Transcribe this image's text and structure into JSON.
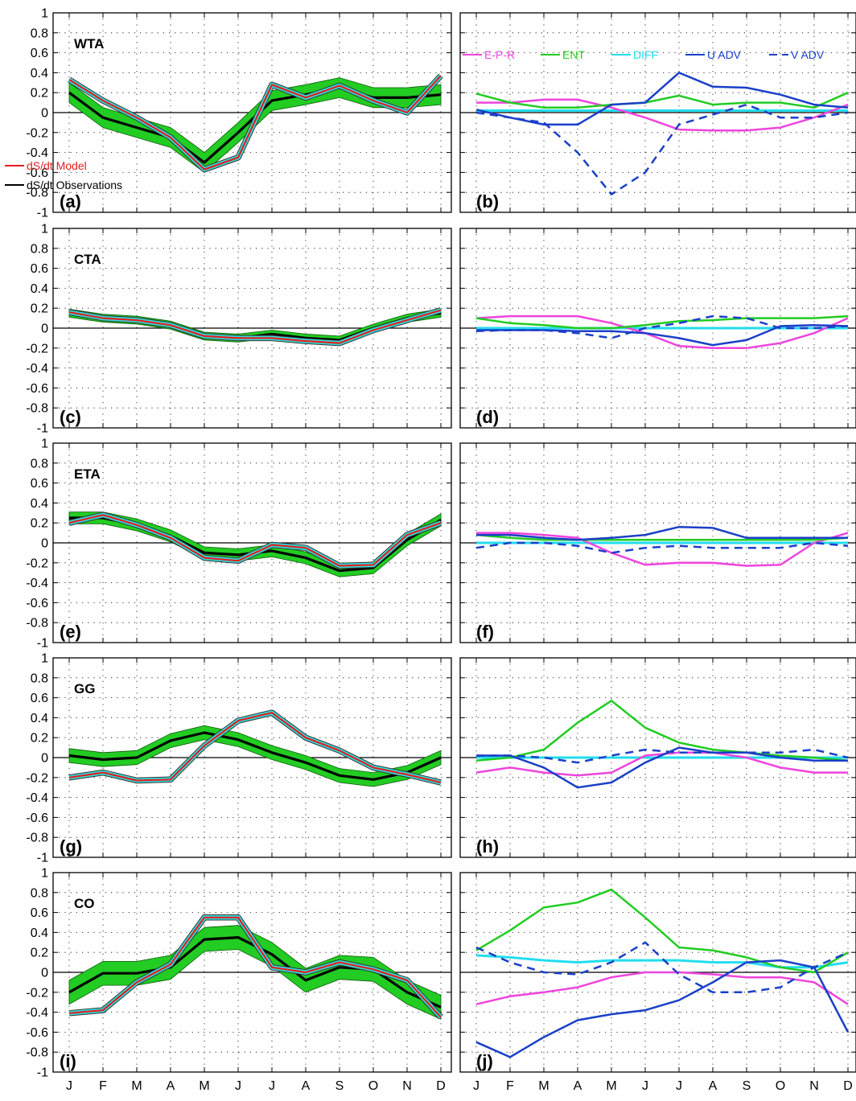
{
  "chart_data": {
    "type": "line",
    "months": [
      "J",
      "F",
      "M",
      "A",
      "M",
      "J",
      "J",
      "A",
      "S",
      "O",
      "N",
      "D"
    ],
    "y_ticks": [
      "1",
      "0.8",
      "0.6",
      "0.4",
      "0.2",
      "0",
      "-0.2",
      "-0.4",
      "-0.6",
      "-0.8",
      "-1"
    ],
    "ylim": [
      -1,
      1
    ],
    "legend_left": {
      "model": "dS/dt Model",
      "obs": "dS/dt Observations"
    },
    "legend_right": [
      "E-P-R",
      "ENT",
      "DIFF",
      "U ADV",
      "V ADV"
    ],
    "colors": {
      "obs": "#000000",
      "band": "#22cc22",
      "model": "#e02020",
      "model_band": "#33dddd",
      "epr": "#ee44dd",
      "ent": "#22cc22",
      "diff": "#22ddee",
      "uadv": "#1a3fc8",
      "vadv": "#1a3fc8"
    },
    "rows": [
      {
        "region": "WTA",
        "left_label": "(a)",
        "right_label": "(b)",
        "obs": [
          0.2,
          -0.05,
          -0.15,
          -0.25,
          -0.5,
          -0.2,
          0.12,
          0.18,
          0.25,
          0.15,
          0.15,
          0.18
        ],
        "obs_spread": 0.1,
        "model": [
          0.33,
          0.12,
          -0.05,
          -0.25,
          -0.57,
          -0.45,
          0.28,
          0.15,
          0.27,
          0.12,
          0.0,
          0.37
        ],
        "epr": [
          0.1,
          0.1,
          0.13,
          0.13,
          0.05,
          -0.05,
          -0.17,
          -0.18,
          -0.18,
          -0.15,
          -0.05,
          0.08
        ],
        "ent": [
          0.19,
          0.1,
          0.05,
          0.05,
          0.08,
          0.1,
          0.17,
          0.08,
          0.1,
          0.1,
          0.05,
          0.2
        ],
        "diff": [
          0.02,
          0.02,
          0.02,
          0.02,
          0.02,
          0.02,
          0.02,
          0.02,
          0.02,
          0.02,
          0.02,
          0.02
        ],
        "uadv": [
          0.03,
          -0.05,
          -0.12,
          -0.12,
          0.08,
          0.1,
          0.4,
          0.26,
          0.25,
          0.18,
          0.08,
          0.05
        ],
        "vadv": [
          0.0,
          -0.05,
          -0.1,
          -0.4,
          -0.82,
          -0.6,
          -0.12,
          -0.02,
          0.08,
          -0.05,
          -0.05,
          0.0
        ]
      },
      {
        "region": "CTA",
        "left_label": "(c)",
        "right_label": "(d)",
        "obs": [
          0.15,
          0.1,
          0.08,
          0.03,
          -0.08,
          -0.1,
          -0.06,
          -0.1,
          -0.12,
          0.0,
          0.1,
          0.15
        ],
        "obs_spread": 0.04,
        "model": [
          0.16,
          0.1,
          0.08,
          0.03,
          -0.08,
          -0.1,
          -0.1,
          -0.13,
          -0.15,
          -0.02,
          0.08,
          0.18
        ],
        "epr": [
          0.1,
          0.12,
          0.12,
          0.12,
          0.05,
          -0.05,
          -0.18,
          -0.2,
          -0.2,
          -0.15,
          -0.05,
          0.1
        ],
        "ent": [
          0.1,
          0.05,
          0.03,
          0.0,
          0.0,
          0.03,
          0.07,
          0.08,
          0.1,
          0.1,
          0.1,
          0.12
        ],
        "diff": [
          0.0,
          0.0,
          0.0,
          0.0,
          0.0,
          0.0,
          0.0,
          0.0,
          0.0,
          0.0,
          0.0,
          0.0
        ],
        "uadv": [
          -0.02,
          -0.02,
          -0.02,
          -0.03,
          -0.03,
          -0.05,
          -0.1,
          -0.17,
          -0.12,
          0.02,
          0.03,
          0.02
        ],
        "vadv": [
          -0.03,
          -0.02,
          -0.02,
          -0.05,
          -0.1,
          0.0,
          0.05,
          0.12,
          0.1,
          0.0,
          0.0,
          0.02
        ]
      },
      {
        "region": "ETA",
        "left_label": "(e)",
        "right_label": "(f)",
        "obs": [
          0.25,
          0.25,
          0.18,
          0.07,
          -0.1,
          -0.12,
          -0.08,
          -0.15,
          -0.28,
          -0.25,
          0.03,
          0.23
        ],
        "obs_spread": 0.06,
        "model": [
          0.2,
          0.28,
          0.18,
          0.05,
          -0.15,
          -0.18,
          -0.02,
          -0.05,
          -0.23,
          -0.22,
          0.08,
          0.2
        ],
        "epr": [
          0.1,
          0.1,
          0.08,
          0.05,
          -0.1,
          -0.22,
          -0.2,
          -0.2,
          -0.23,
          -0.22,
          0.0,
          0.1
        ],
        "ent": [
          0.08,
          0.05,
          0.03,
          0.03,
          0.03,
          0.03,
          0.03,
          0.03,
          0.03,
          0.03,
          0.03,
          0.05
        ],
        "diff": [
          0.0,
          0.0,
          0.0,
          0.0,
          0.0,
          0.0,
          0.0,
          0.0,
          0.0,
          0.0,
          0.0,
          0.0
        ],
        "uadv": [
          0.08,
          0.08,
          0.05,
          0.03,
          0.05,
          0.08,
          0.16,
          0.15,
          0.05,
          0.05,
          0.05,
          0.05
        ],
        "vadv": [
          -0.05,
          0.0,
          0.0,
          -0.03,
          -0.1,
          -0.05,
          -0.03,
          -0.05,
          -0.05,
          -0.05,
          0.0,
          -0.03
        ]
      },
      {
        "region": "GG",
        "left_label": "(g)",
        "right_label": "(h)",
        "obs": [
          0.02,
          -0.02,
          0.0,
          0.17,
          0.25,
          0.18,
          0.05,
          -0.05,
          -0.18,
          -0.22,
          -0.15,
          0.0
        ],
        "obs_spread": 0.07,
        "model": [
          -0.2,
          -0.15,
          -0.23,
          -0.22,
          0.12,
          0.37,
          0.45,
          0.2,
          0.07,
          -0.1,
          -0.17,
          -0.25
        ],
        "epr": [
          -0.15,
          -0.1,
          -0.15,
          -0.18,
          -0.15,
          0.02,
          0.05,
          0.05,
          0.0,
          -0.1,
          -0.15,
          -0.15
        ],
        "ent": [
          -0.03,
          0.0,
          0.08,
          0.35,
          0.57,
          0.3,
          0.15,
          0.08,
          0.05,
          0.02,
          0.0,
          -0.03
        ],
        "diff": [
          0.0,
          0.0,
          0.0,
          0.0,
          0.0,
          0.0,
          0.0,
          0.0,
          0.0,
          0.0,
          0.0,
          0.0
        ],
        "uadv": [
          0.02,
          0.02,
          -0.1,
          -0.3,
          -0.25,
          -0.05,
          0.1,
          0.05,
          0.05,
          0.0,
          -0.03,
          -0.03
        ],
        "vadv": [
          0.02,
          0.02,
          0.0,
          -0.05,
          0.02,
          0.08,
          0.05,
          0.05,
          0.05,
          0.05,
          0.08,
          0.0
        ]
      },
      {
        "region": "CO",
        "left_label": "(i)",
        "right_label": "(j)",
        "obs": [
          -0.2,
          -0.01,
          -0.01,
          0.05,
          0.33,
          0.35,
          0.18,
          -0.08,
          0.05,
          0.03,
          -0.2,
          -0.35
        ],
        "obs_spread": 0.12,
        "model": [
          -0.41,
          -0.38,
          -0.1,
          0.08,
          0.55,
          0.55,
          0.05,
          0.0,
          0.1,
          0.03,
          -0.08,
          -0.45
        ],
        "epr": [
          -0.32,
          -0.24,
          -0.2,
          -0.15,
          -0.05,
          0.0,
          0.0,
          -0.02,
          -0.05,
          -0.05,
          -0.1,
          -0.32
        ],
        "ent": [
          0.22,
          0.42,
          0.65,
          0.7,
          0.83,
          0.55,
          0.25,
          0.22,
          0.15,
          0.05,
          0.0,
          0.2
        ],
        "diff": [
          0.17,
          0.15,
          0.12,
          0.1,
          0.12,
          0.12,
          0.12,
          0.1,
          0.1,
          0.05,
          0.05,
          0.1
        ],
        "uadv": [
          -0.7,
          -0.85,
          -0.65,
          -0.48,
          -0.42,
          -0.38,
          -0.28,
          -0.1,
          0.1,
          0.12,
          0.05,
          -0.6
        ],
        "vadv": [
          0.25,
          0.1,
          0.0,
          -0.02,
          0.1,
          0.3,
          -0.02,
          -0.2,
          -0.2,
          -0.15,
          0.05,
          0.2
        ]
      }
    ]
  }
}
